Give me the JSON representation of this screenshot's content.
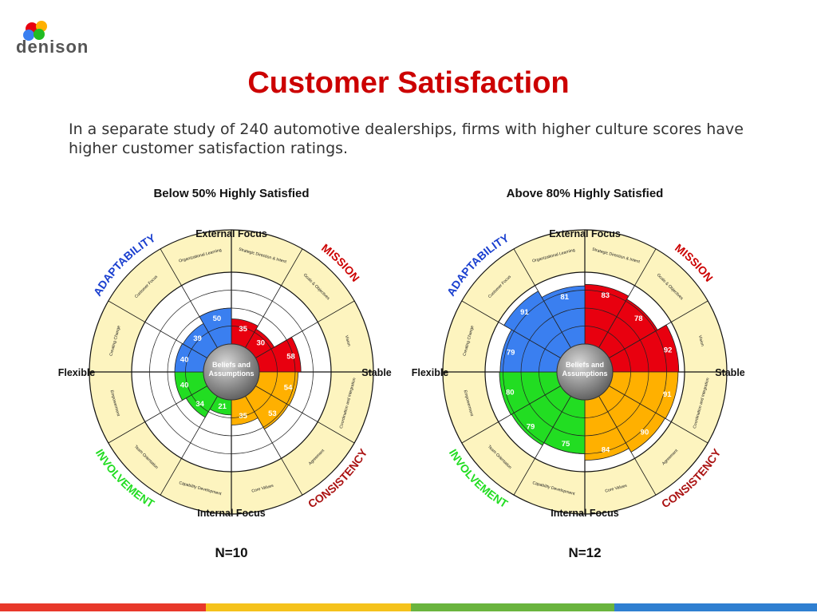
{
  "logo": "denison",
  "title": "Customer Satisfaction",
  "text": "In a separate study of 240 automotive dealerships, firms with higher culture scores have higher customer satisfaction ratings.",
  "chart_data": [
    {
      "type": "circumplex",
      "title": "Below 50% Highly Satisfied",
      "caption": "N=10",
      "center": "Beliefs and Assumptions",
      "axis_labels": {
        "top": "External Focus",
        "bottom": "Internal Focus",
        "left": "Flexible",
        "right": "Stable"
      },
      "quadrants": [
        {
          "name": "MISSION",
          "color": "#e8000f"
        },
        {
          "name": "CONSISTENCY",
          "color": "#ffb000"
        },
        {
          "name": "INVOLVEMENT",
          "color": "#22dd22"
        },
        {
          "name": "ADAPTABILITY",
          "color": "#3a7ff0"
        }
      ],
      "categories": [
        "Strategic Direction & Intent",
        "Goals & Objectives",
        "Vision",
        "Coordination and Integration",
        "Agreement",
        "Core Values",
        "Capability Development",
        "Team Orientation",
        "Empowerment",
        "Creating Change",
        "Customer Focus",
        "Organizational Learning"
      ],
      "values": [
        35,
        30,
        58,
        54,
        53,
        35,
        21,
        34,
        40,
        40,
        39,
        50
      ],
      "ylim": [
        0,
        100
      ],
      "yticks": [
        25,
        50,
        75
      ]
    },
    {
      "type": "circumplex",
      "title": "Above 80% Highly Satisfied",
      "caption": "N=12",
      "center": "Beliefs and Assumptions",
      "axis_labels": {
        "top": "External Focus",
        "bottom": "Internal Focus",
        "left": "Flexible",
        "right": "Stable"
      },
      "quadrants": [
        {
          "name": "MISSION",
          "color": "#e8000f"
        },
        {
          "name": "CONSISTENCY",
          "color": "#ffb000"
        },
        {
          "name": "INVOLVEMENT",
          "color": "#22dd22"
        },
        {
          "name": "ADAPTABILITY",
          "color": "#3a7ff0"
        }
      ],
      "categories": [
        "Strategic Direction & Intent",
        "Goals & Objectives",
        "Vision",
        "Coordination and Integration",
        "Agreement",
        "Core Values",
        "Capability Development",
        "Team Orientation",
        "Empowerment",
        "Creating Change",
        "Customer Focus",
        "Organizational Learning"
      ],
      "values": [
        83,
        78,
        92,
        91,
        90,
        84,
        75,
        79,
        80,
        79,
        91,
        81
      ],
      "ylim": [
        0,
        100
      ],
      "yticks": [
        25,
        50,
        75
      ]
    }
  ]
}
